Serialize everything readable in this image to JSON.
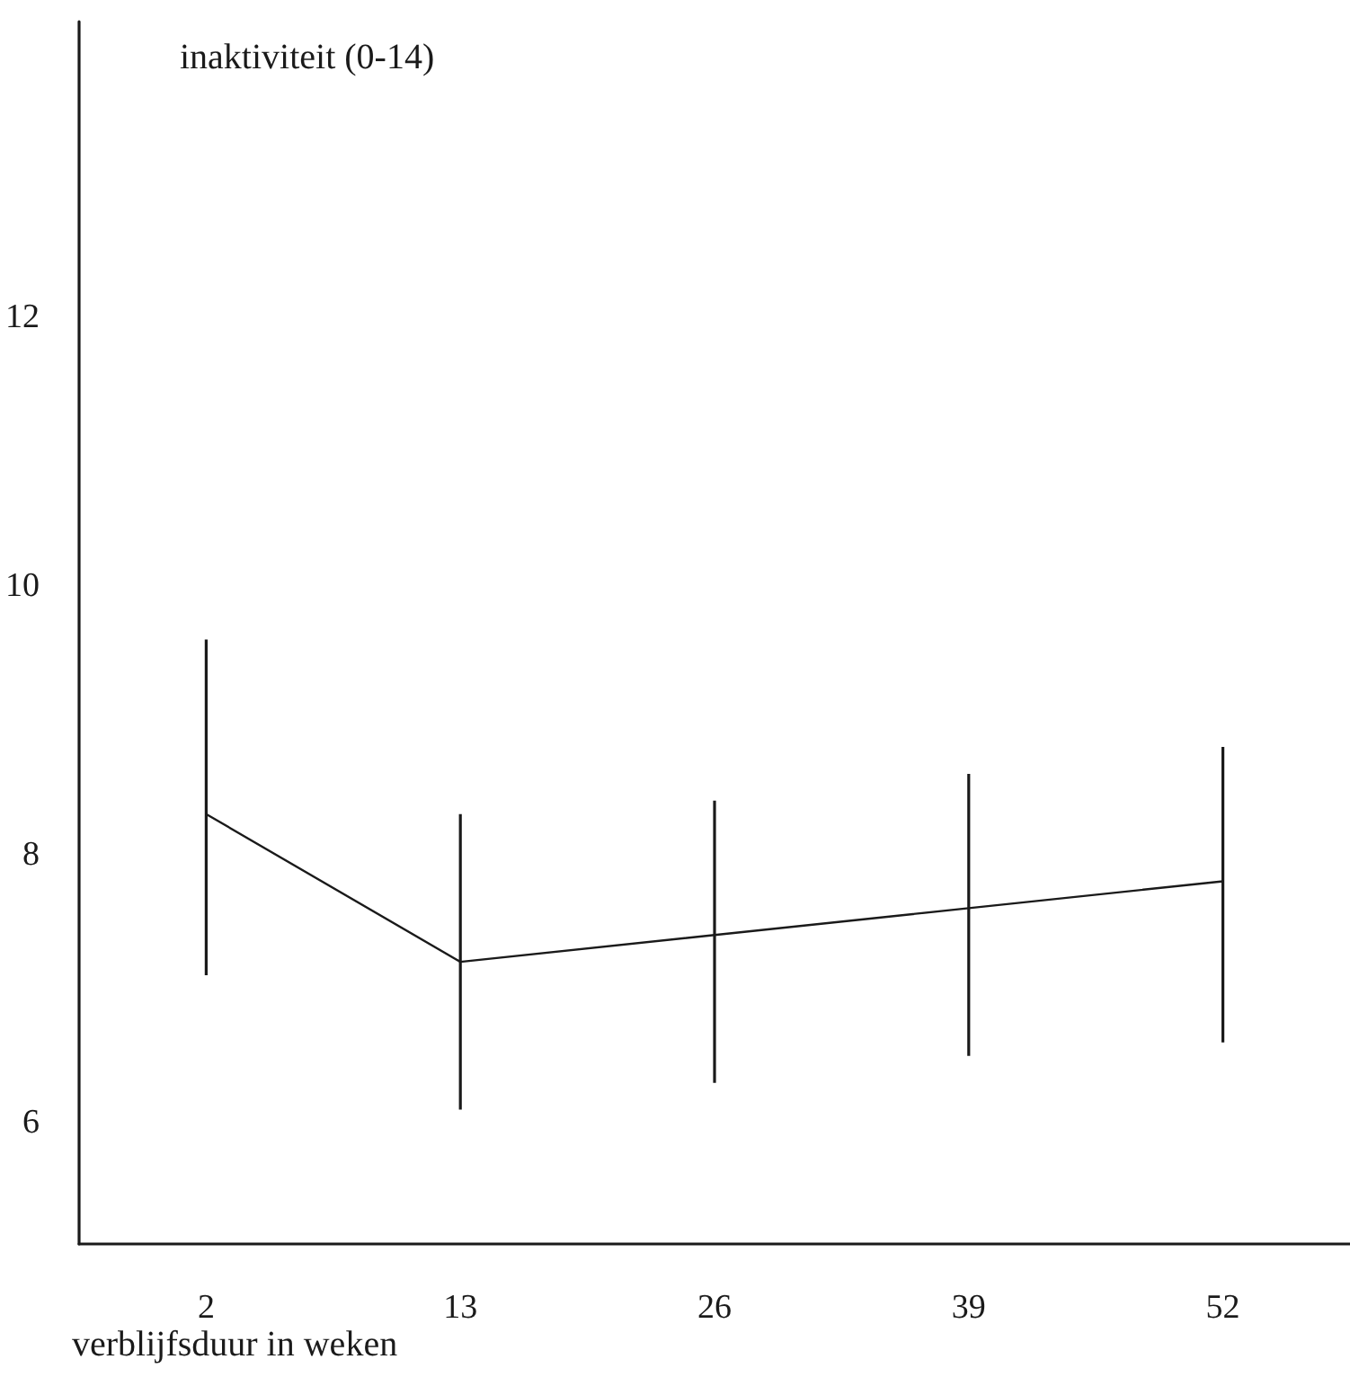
{
  "chart_data": {
    "type": "line",
    "xlabel": "verblijfsduur in weken",
    "ylabel": "inaktiviteit (0-14)",
    "categories": [
      "2",
      "13",
      "26",
      "39",
      "52"
    ],
    "series": [
      {
        "color": "#1a1a1a",
        "values": [
          8.3,
          7.2,
          7.4,
          7.6,
          7.8
        ],
        "errors": [
          [
            7.1,
            9.6
          ],
          [
            6.1,
            8.3
          ],
          [
            6.3,
            8.4
          ],
          [
            6.5,
            8.6
          ],
          [
            6.6,
            8.8
          ]
        ]
      }
    ],
    "ylim": [
      5.1,
      14.2
    ],
    "yticks": [
      6,
      8,
      10,
      12
    ],
    "grid": false,
    "marker": "none",
    "line_style": "solid"
  }
}
